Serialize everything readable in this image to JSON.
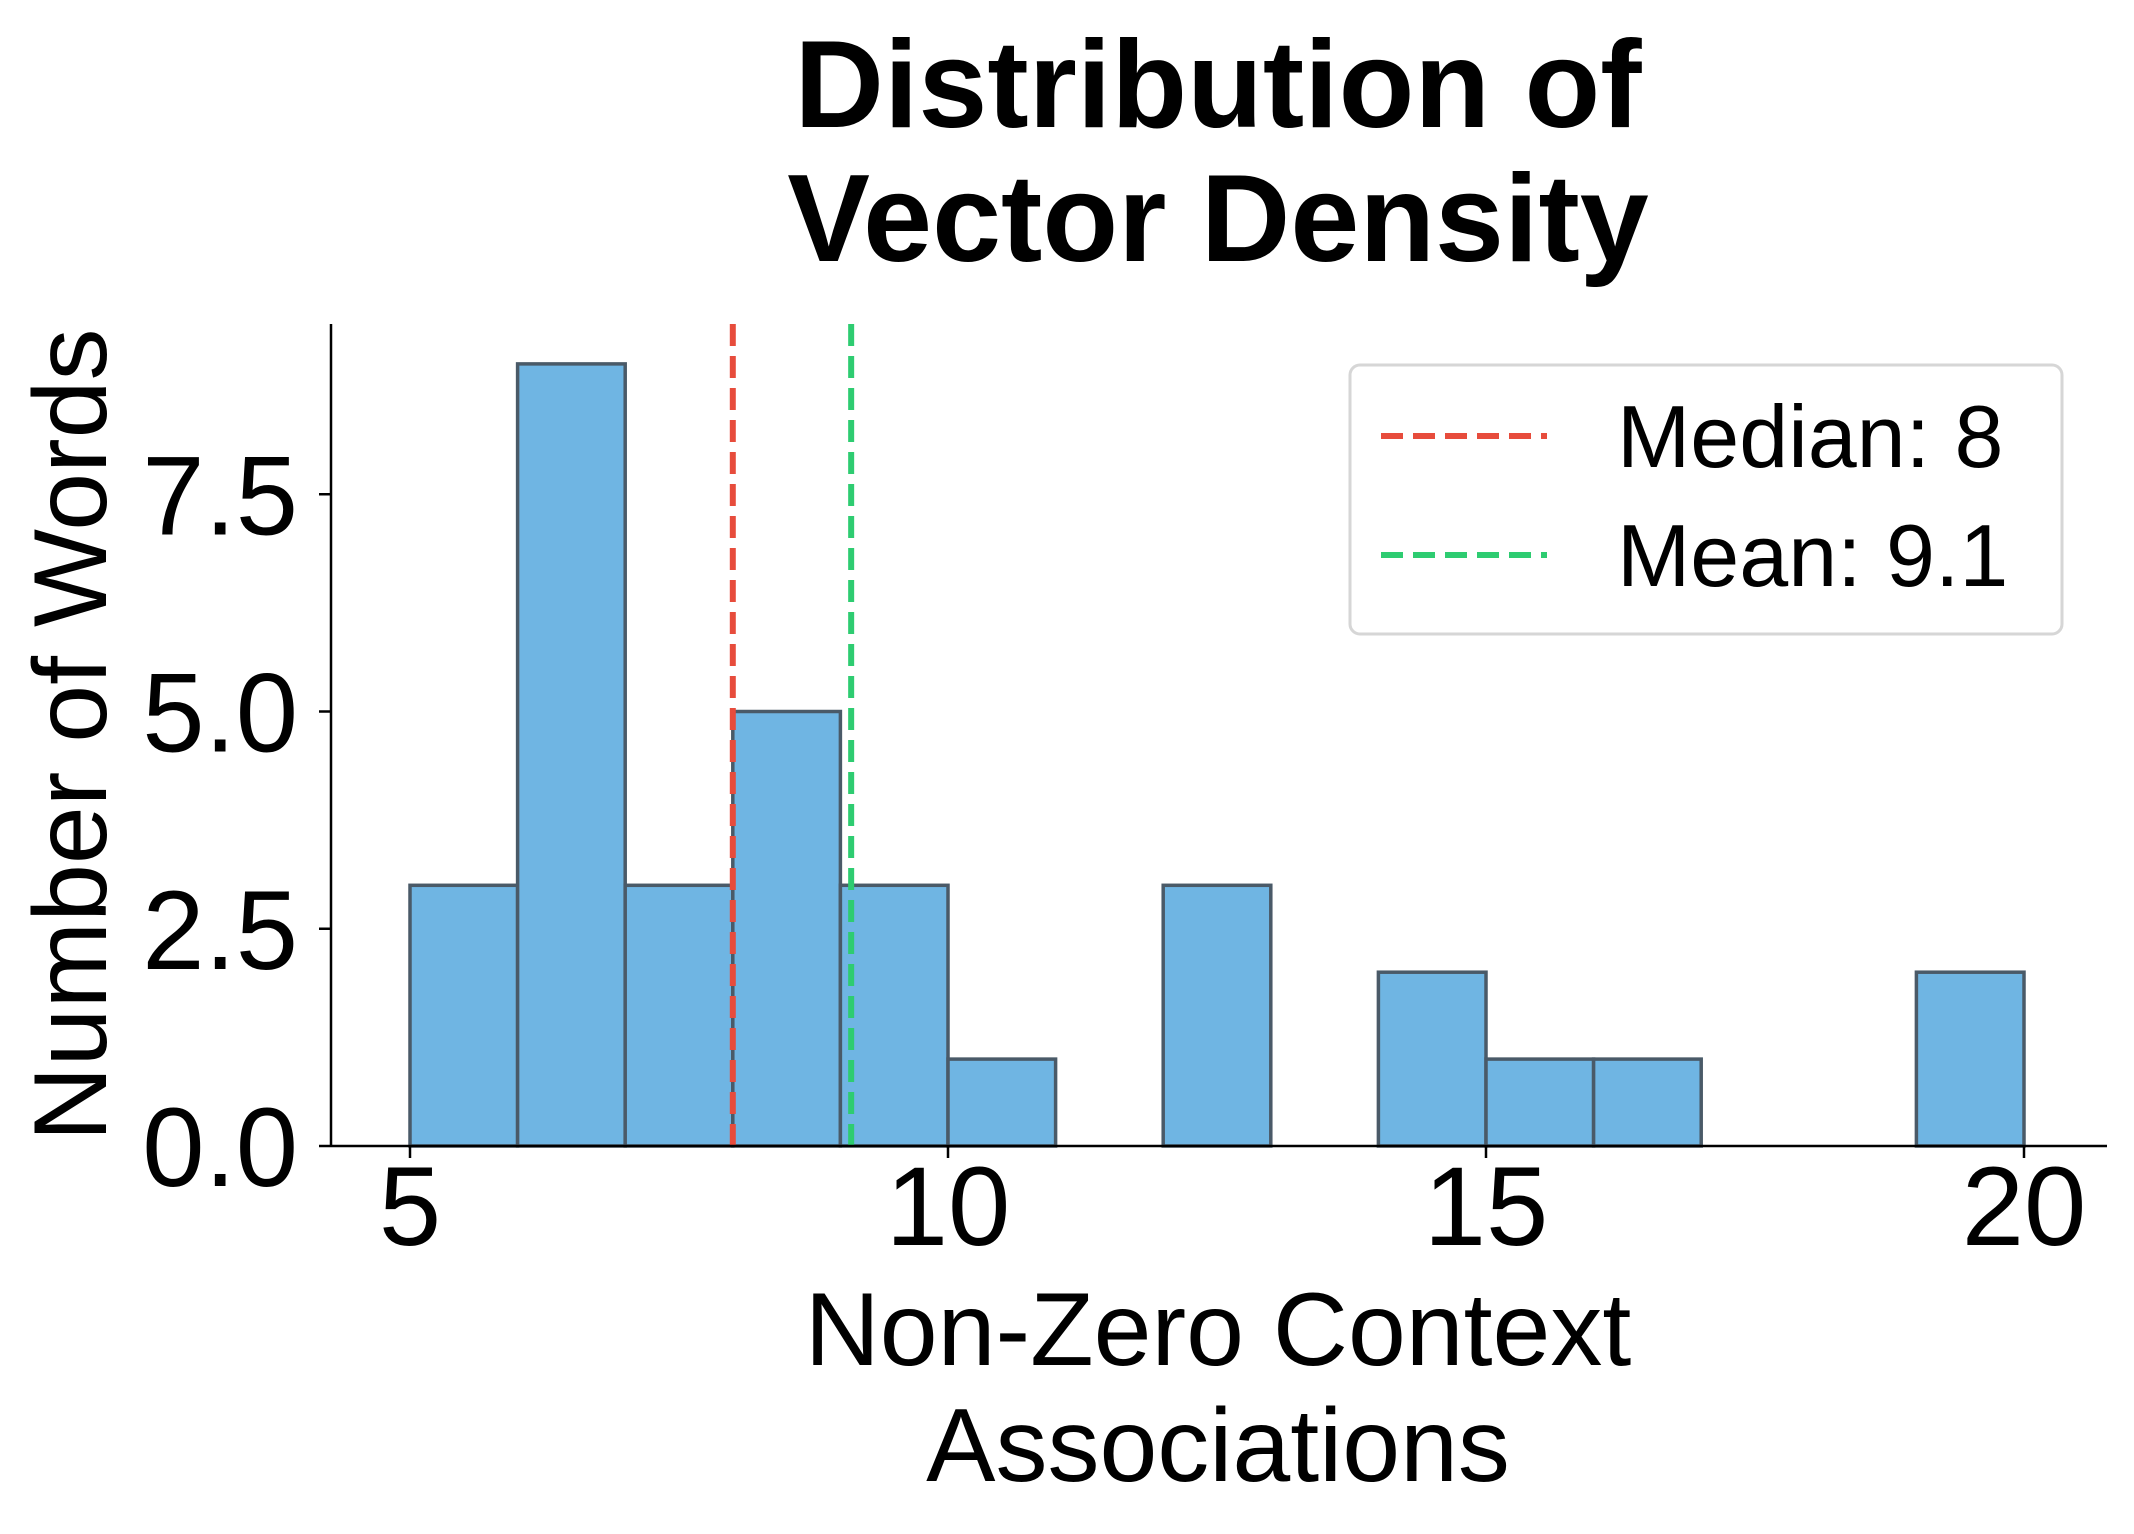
{
  "chart_data": {
    "type": "bar",
    "subtype": "histogram",
    "title": [
      "Distribution of",
      "Vector Density"
    ],
    "xlabel": [
      "Non-Zero Context",
      "Associations"
    ],
    "ylabel": "Number of Words",
    "bin_edges": [
      5,
      6,
      7,
      8,
      9,
      10,
      11,
      12,
      13,
      14,
      15,
      16,
      17,
      18,
      19,
      20
    ],
    "counts": [
      3,
      9,
      3,
      5,
      3,
      1,
      0,
      3,
      0,
      2,
      1,
      1,
      0,
      0,
      2
    ],
    "xlim": [
      4.27,
      20.8
    ],
    "ylim": [
      0,
      9.45
    ],
    "xticks": [
      5,
      10,
      15,
      20
    ],
    "xtick_labels": [
      "5",
      "10",
      "15",
      "20"
    ],
    "yticks": [
      0,
      2.5,
      5,
      7.5
    ],
    "ytick_labels": [
      "0.0",
      "2.5",
      "5.0",
      "7.5"
    ],
    "grid": false,
    "legend_position": "top-right",
    "reference_lines": [
      {
        "name": "Median: 8",
        "x": 8,
        "color": "#e74c3c",
        "style": "dashed"
      },
      {
        "name": "Mean: 9.1",
        "x": 9.1,
        "color": "#2ecc71",
        "style": "dashed"
      }
    ],
    "colors": {
      "bar_fill": "#6fb5e3",
      "bar_edge": "#4a5a68"
    }
  }
}
